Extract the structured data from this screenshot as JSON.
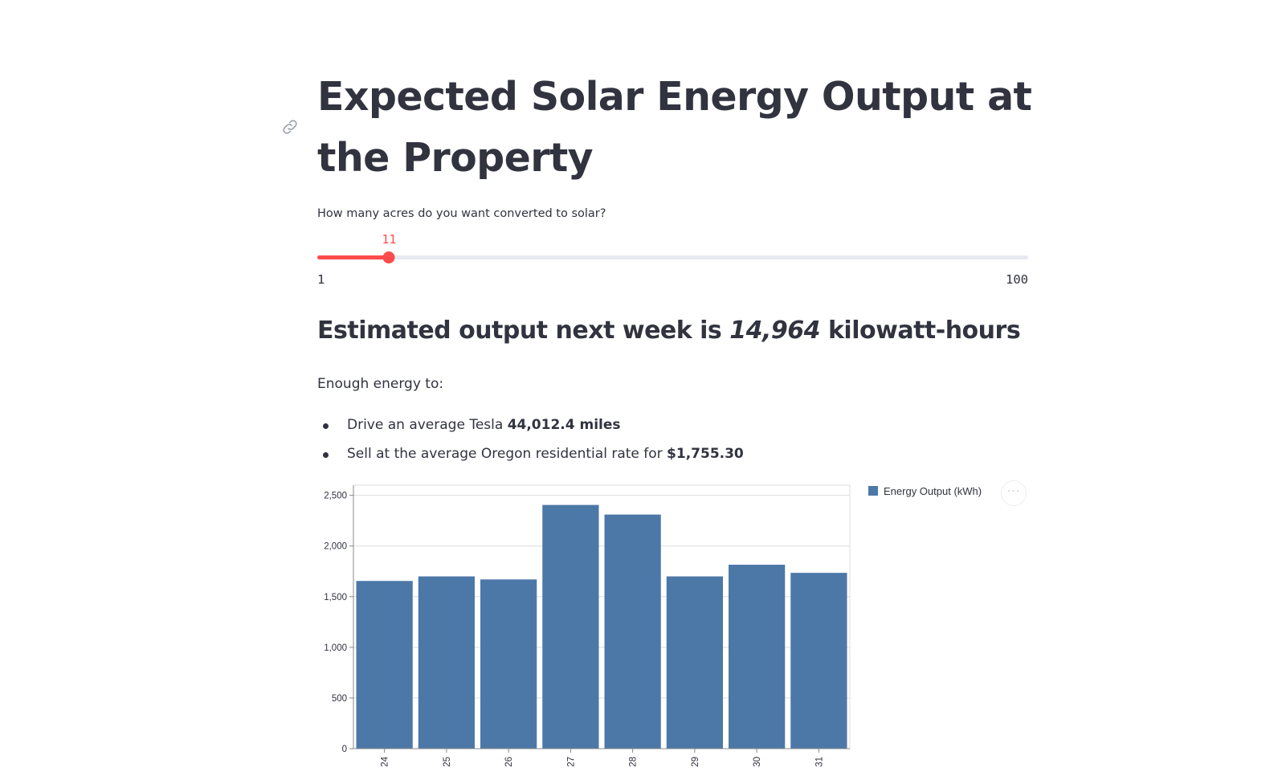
{
  "page": {
    "title": "Expected Solar Energy Output at the Property"
  },
  "slider": {
    "label": "How many acres do you want converted to solar?",
    "value": 11,
    "value_text": "11",
    "min": 1,
    "min_text": "1",
    "max": 100,
    "max_text": "100",
    "accent_color": "#ff4b4b"
  },
  "estimate": {
    "prefix": "Estimated output next week is ",
    "value": "14,964",
    "suffix": " kilowatt-hours"
  },
  "enough": {
    "intro": "Enough energy to:",
    "items": [
      {
        "text": "Drive an average Tesla ",
        "strong": "44,012.4 miles"
      },
      {
        "text": "Sell at the average Oregon residential rate for ",
        "strong": "$1,755.30"
      }
    ]
  },
  "chart_menu": {
    "label": "···",
    "icon": "more-horizontal-icon"
  },
  "chart_data": {
    "type": "bar",
    "categories": [
      "24",
      "25",
      "26",
      "27",
      "28",
      "29",
      "30",
      "31"
    ],
    "series": [
      {
        "name": "Energy Output (kWh)",
        "color": "#4c78a8",
        "values": [
          1655,
          1700,
          1670,
          2405,
          2310,
          1700,
          1815,
          1735
        ]
      }
    ],
    "ylim": [
      0,
      2600
    ],
    "yticks": [
      0,
      500,
      1000,
      1500,
      2000,
      2500
    ],
    "ytick_labels": [
      "0",
      "500",
      "1,000",
      "1,500",
      "2,000",
      "2,500"
    ],
    "grid": true,
    "legend_position": "top-right"
  }
}
